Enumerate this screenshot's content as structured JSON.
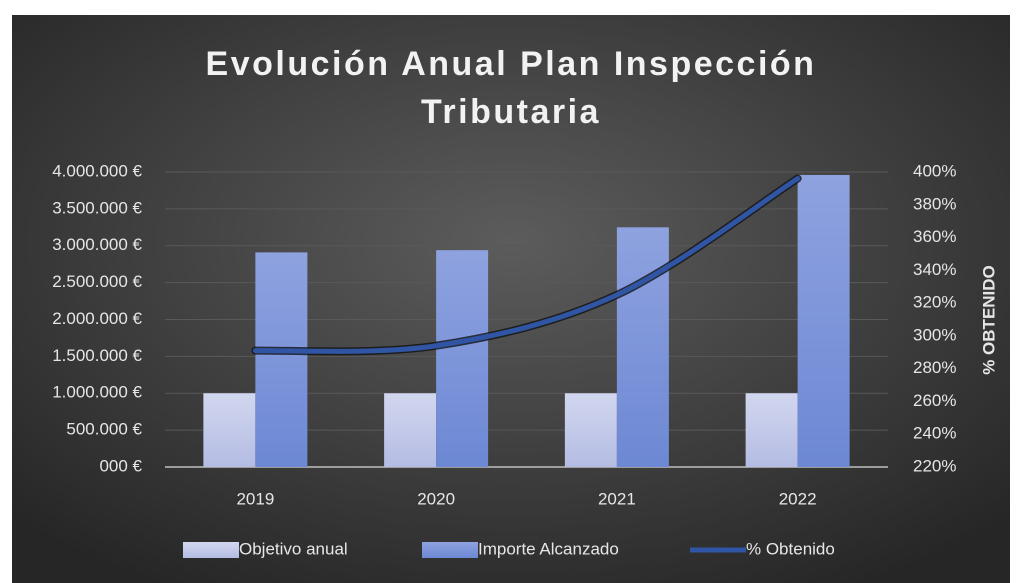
{
  "chart_data": {
    "type": "bar",
    "title": "Evolución Anual Plan Inspección Tributaria",
    "y2label": "% OBTENIDO",
    "categories": [
      "2019",
      "2020",
      "2021",
      "2022"
    ],
    "series": [
      {
        "name": "Objetivo anual",
        "color": "#c5cbea",
        "values": [
          1000000,
          1000000,
          1000000,
          1000000
        ]
      },
      {
        "name": "Importe Alcanzado",
        "color": "#7f96da",
        "values": [
          2910000,
          2940000,
          3250000,
          3960000
        ]
      },
      {
        "name": "% Obtenido",
        "color": "#2f55a4",
        "type": "line",
        "axis": "y2",
        "values": [
          291,
          294,
          325,
          396
        ]
      }
    ],
    "ylim": [
      0,
      4000000
    ],
    "yticks": [
      {
        "value": 0,
        "label": "000 €"
      },
      {
        "value": 500000,
        "label": "500.000 €"
      },
      {
        "value": 1000000,
        "label": "1.000.000 €"
      },
      {
        "value": 1500000,
        "label": "1.500.000 €"
      },
      {
        "value": 2000000,
        "label": "2.000.000 €"
      },
      {
        "value": 2500000,
        "label": "2.500.000 €"
      },
      {
        "value": 3000000,
        "label": "3.000.000 €"
      },
      {
        "value": 3500000,
        "label": "3.500.000 €"
      },
      {
        "value": 4000000,
        "label": "4.000.000 €"
      }
    ],
    "y2lim": [
      220,
      400
    ],
    "y2ticks": [
      {
        "value": 220,
        "label": "220%"
      },
      {
        "value": 240,
        "label": "240%"
      },
      {
        "value": 260,
        "label": "260%"
      },
      {
        "value": 280,
        "label": "280%"
      },
      {
        "value": 300,
        "label": "300%"
      },
      {
        "value": 320,
        "label": "320%"
      },
      {
        "value": 340,
        "label": "340%"
      },
      {
        "value": 360,
        "label": "360%"
      },
      {
        "value": 380,
        "label": "380%"
      },
      {
        "value": 400,
        "label": "400%"
      }
    ],
    "grid": true,
    "legend": "bottom"
  }
}
